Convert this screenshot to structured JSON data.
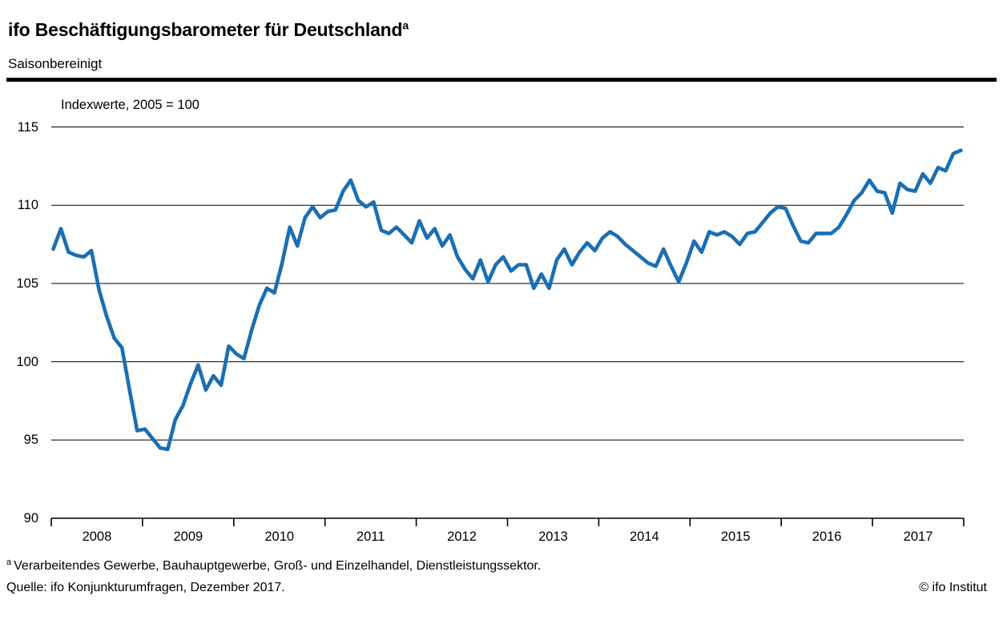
{
  "header": {
    "title": "ifo Beschäftigungsbarometer für Deutschland",
    "title_superscript": "a",
    "subtitle": "Saisonbereinigt"
  },
  "chart_data": {
    "type": "line",
    "annotation": "Indexwerte, 2005 = 100",
    "frequency": "monthly",
    "x_start": "2008-01",
    "x_end": "2017-12",
    "categories": [
      "2008",
      "2009",
      "2010",
      "2011",
      "2012",
      "2013",
      "2014",
      "2015",
      "2016",
      "2017"
    ],
    "y_ticks": [
      115,
      110,
      105,
      100,
      95,
      90
    ],
    "ylim": [
      90,
      115
    ],
    "grid": "horizontal",
    "legend": "none",
    "line_color": "#1b6fb2",
    "line_width": 4.6,
    "axis_color": "#000000",
    "series": [
      {
        "name": "ifo Beschäftigungsbarometer (saisonbereinigt)",
        "values_by_year": {
          "2008": [
            107.2,
            108.5,
            107.0,
            106.8,
            106.7,
            107.1,
            104.6,
            102.9,
            101.5,
            100.9,
            98.2,
            95.6
          ],
          "2009": [
            95.7,
            95.1,
            94.5,
            94.4,
            96.3,
            97.2,
            98.6,
            99.8,
            98.2,
            99.1,
            98.5,
            101.0
          ],
          "2010": [
            100.5,
            100.2,
            102.0,
            103.6,
            104.7,
            104.4,
            106.3,
            108.6,
            107.4,
            109.2,
            109.9,
            109.2
          ],
          "2011": [
            109.6,
            109.7,
            110.9,
            111.6,
            110.3,
            109.9,
            110.2,
            108.4,
            108.2,
            108.6,
            108.1,
            107.6
          ],
          "2012": [
            109.0,
            107.9,
            108.5,
            107.4,
            108.1,
            106.7,
            105.9,
            105.3,
            106.5,
            105.1,
            106.2,
            106.7
          ],
          "2013": [
            105.8,
            106.2,
            106.2,
            104.7,
            105.6,
            104.7,
            106.5,
            107.2,
            106.2,
            107.0,
            107.6,
            107.1
          ],
          "2014": [
            107.9,
            108.3,
            108.0,
            107.5,
            107.1,
            106.7,
            106.3,
            106.1,
            107.2,
            106.1,
            105.1,
            106.3
          ],
          "2015": [
            107.7,
            107.0,
            108.3,
            108.1,
            108.3,
            108.0,
            107.5,
            108.2,
            108.3,
            108.9,
            109.5,
            109.9
          ],
          "2016": [
            109.8,
            108.7,
            107.7,
            107.6,
            108.2,
            108.2,
            108.2,
            108.6,
            109.4,
            110.3,
            110.8,
            111.6
          ],
          "2017": [
            110.9,
            110.8,
            109.5,
            111.4,
            111.0,
            110.9,
            112.0,
            111.4,
            112.4,
            112.2,
            113.3,
            113.5
          ]
        }
      }
    ]
  },
  "footer": {
    "footnote_marker": "a",
    "footnote": "Verarbeitendes Gewerbe, Bauhauptgewerbe, Groß- und Einzelhandel, Dienstleistungssektor.",
    "source": "Quelle: ifo Konjunkturumfragen, Dezember 2017.",
    "copyright": "© ifo Institut"
  }
}
